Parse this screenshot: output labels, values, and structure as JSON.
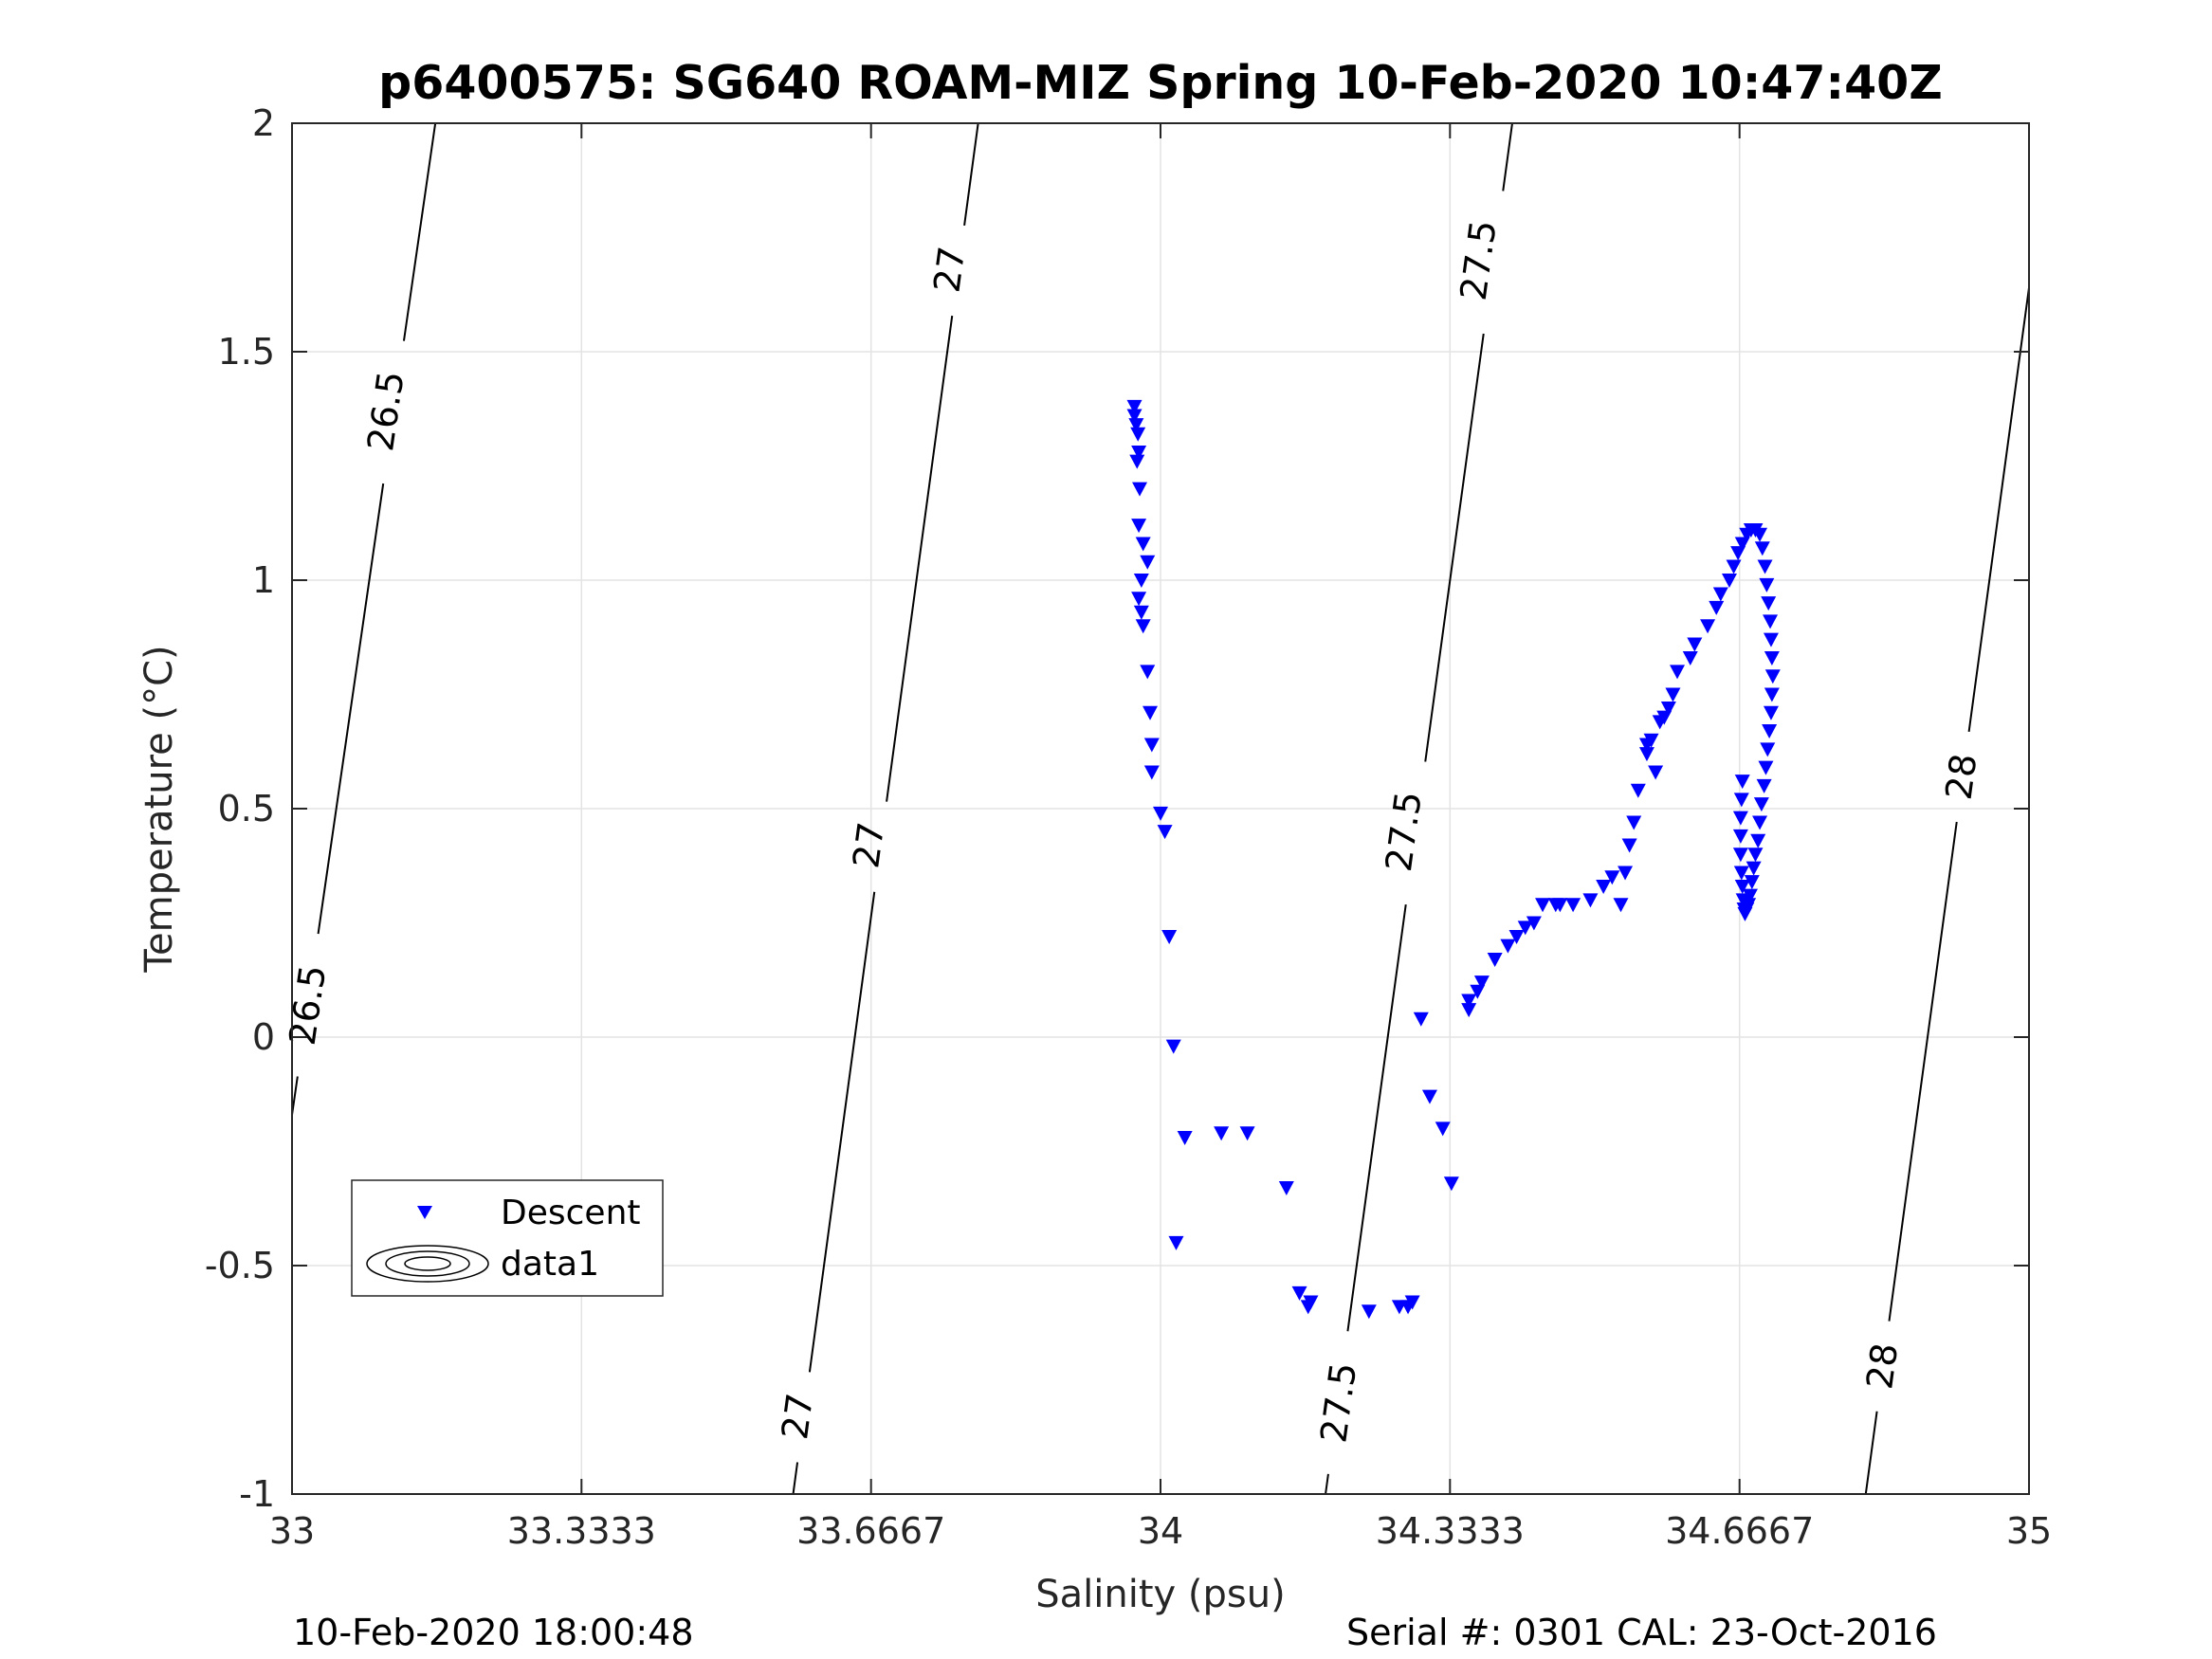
{
  "chart_data": {
    "type": "scatter",
    "title": "p6400575: SG640 ROAM-MIZ Spring 10-Feb-2020 10:47:40Z",
    "xlabel": "Salinity (psu)",
    "ylabel": "Temperature (°C)",
    "xlim": [
      33,
      35
    ],
    "ylim": [
      -1,
      2
    ],
    "xticks": [
      "33",
      "33.3333",
      "33.6667",
      "34",
      "34.3333",
      "34.6667",
      "35"
    ],
    "xtick_values": [
      33,
      33.3333,
      33.6667,
      34,
      34.3333,
      34.6667,
      35
    ],
    "yticks": [
      "-1",
      "-0.5",
      "0",
      "0.5",
      "1",
      "1.5",
      "2"
    ],
    "ytick_values": [
      -1,
      -0.5,
      0,
      0.5,
      1,
      1.5,
      2
    ],
    "grid": true,
    "legend_position": "bottom-left",
    "legend": [
      "Descent",
      "data1"
    ],
    "series": [
      {
        "name": "Descent",
        "marker": "triangle-down",
        "color": "#0000ff",
        "x": [
          33.97,
          33.97,
          33.972,
          33.974,
          33.975,
          33.973,
          33.976,
          33.975,
          33.98,
          33.985,
          33.978,
          33.975,
          33.978,
          33.98,
          33.985,
          33.988,
          33.99,
          33.99,
          34.0,
          34.005,
          34.01,
          34.015,
          34.018,
          34.028,
          34.07,
          34.1,
          34.145,
          34.16,
          34.17,
          34.173,
          34.24,
          34.275,
          34.285,
          34.29,
          34.3,
          34.31,
          34.325,
          34.335,
          34.355,
          34.355,
          34.365,
          34.37,
          34.385,
          34.4,
          34.41,
          34.42,
          34.43,
          34.44,
          34.455,
          34.46,
          34.475,
          34.495,
          34.51,
          34.52,
          34.53,
          34.535,
          34.54,
          34.545,
          34.55,
          34.57,
          34.56,
          34.56,
          34.565,
          34.575,
          34.58,
          34.585,
          34.59,
          34.595,
          34.61,
          34.615,
          34.63,
          34.64,
          34.645,
          34.655,
          34.66,
          34.665,
          34.67,
          34.675,
          34.68,
          34.685,
          34.69,
          34.693,
          34.696,
          34.698,
          34.7,
          34.702,
          34.703,
          34.704,
          34.705,
          34.704,
          34.703,
          34.701,
          34.699,
          34.697,
          34.695,
          34.692,
          34.69,
          34.688,
          34.685,
          34.683,
          34.681,
          34.679,
          34.677,
          34.675,
          34.673,
          34.672,
          34.671,
          34.67,
          34.669,
          34.668,
          34.668,
          34.668,
          34.669,
          34.67
        ],
        "y": [
          1.38,
          1.36,
          1.34,
          1.32,
          1.28,
          1.26,
          1.2,
          1.12,
          1.08,
          1.04,
          1.0,
          0.96,
          0.93,
          0.9,
          0.8,
          0.71,
          0.64,
          0.58,
          0.49,
          0.45,
          0.22,
          -0.02,
          -0.45,
          -0.22,
          -0.21,
          -0.21,
          -0.33,
          -0.56,
          -0.59,
          -0.58,
          -0.6,
          -0.59,
          -0.59,
          -0.58,
          0.04,
          -0.13,
          -0.2,
          -0.32,
          0.06,
          0.08,
          0.1,
          0.12,
          0.17,
          0.2,
          0.22,
          0.24,
          0.25,
          0.29,
          0.29,
          0.29,
          0.29,
          0.3,
          0.33,
          0.35,
          0.29,
          0.36,
          0.42,
          0.47,
          0.54,
          0.58,
          0.62,
          0.64,
          0.65,
          0.69,
          0.7,
          0.72,
          0.75,
          0.8,
          0.83,
          0.86,
          0.9,
          0.94,
          0.97,
          1.0,
          1.03,
          1.06,
          1.08,
          1.1,
          1.11,
          1.11,
          1.1,
          1.07,
          1.03,
          0.99,
          0.95,
          0.91,
          0.87,
          0.83,
          0.79,
          0.75,
          0.71,
          0.67,
          0.63,
          0.59,
          0.55,
          0.51,
          0.47,
          0.43,
          0.4,
          0.37,
          0.34,
          0.31,
          0.29,
          0.28,
          0.27,
          0.28,
          0.3,
          0.33,
          0.36,
          0.4,
          0.44,
          0.48,
          0.52,
          0.56
        ]
      },
      {
        "name": "data1",
        "type": "contour",
        "color": "#000000",
        "label_color": "#000000",
        "lines": [
          {
            "level": "26.5",
            "x": [
              33.0,
              33.165
            ],
            "y": [
              -0.17,
              2.0
            ],
            "labels": [
              {
                "x": 33.018,
                "y": 0.07
              },
              {
                "x": 33.108,
                "y": 1.37
              }
            ]
          },
          {
            "level": "27",
            "x": [
              33.577,
              33.79
            ],
            "y": [
              -1.0,
              2.0
            ],
            "labels": [
              {
                "x": 33.582,
                "y": -0.83
              },
              {
                "x": 33.664,
                "y": 0.42
              },
              {
                "x": 33.757,
                "y": 1.68
              }
            ]
          },
          {
            "level": "27.5",
            "x": [
              34.19,
              34.405
            ],
            "y": [
              -1.0,
              2.0
            ],
            "labels": [
              {
                "x": 34.205,
                "y": -0.8
              },
              {
                "x": 34.28,
                "y": 0.45
              },
              {
                "x": 34.366,
                "y": 1.7
              }
            ]
          },
          {
            "level": "28",
            "x": [
              34.812,
              35.0
            ],
            "y": [
              -1.0,
              1.64
            ],
            "labels": [
              {
                "x": 34.831,
                "y": -0.72
              },
              {
                "x": 34.922,
                "y": 0.57
              }
            ]
          }
        ]
      }
    ]
  },
  "footer": {
    "left": "10-Feb-2020 18:00:48",
    "right": "Serial #: 0301  CAL: 23-Oct-2016"
  }
}
